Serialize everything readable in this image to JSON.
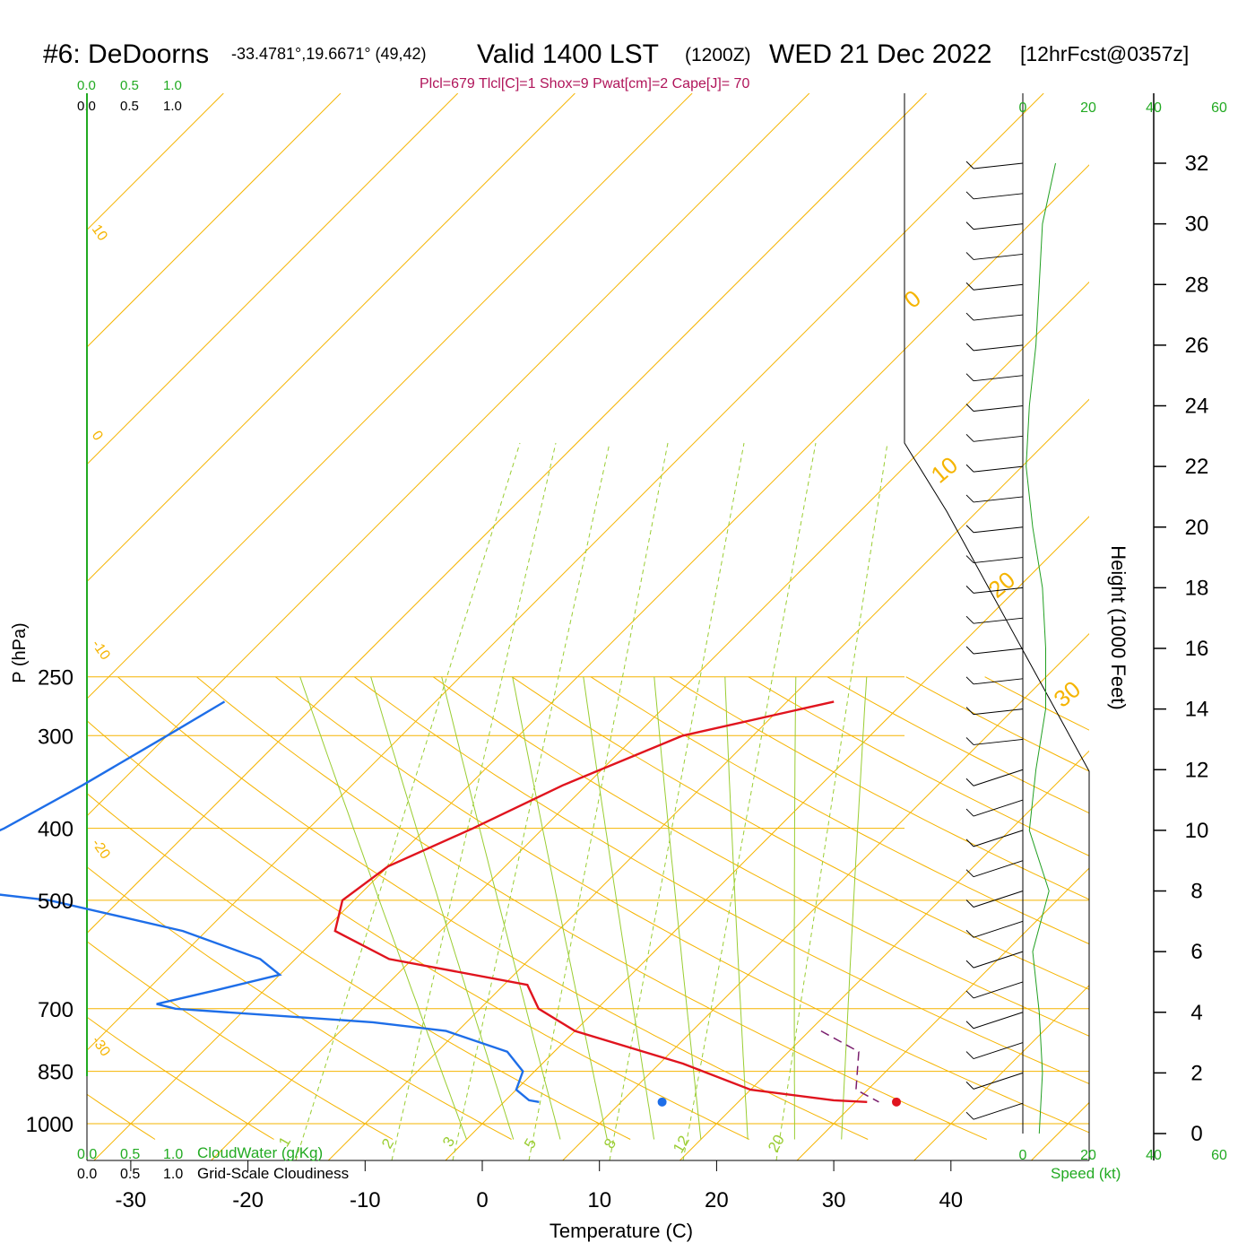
{
  "header": {
    "station": "#6: DeDoorns",
    "coords": "-33.4781°,19.6671° (49,42)",
    "valid": "Valid 1400 LST",
    "utc": "(1200Z)",
    "date": "WED 21 Dec 2022",
    "forecast": "[12hrFcst@0357z]",
    "indices": "Plcl=679 Tlcl[C]=1 Shox=9 Pwat[cm]=2 Cape[J]= 70"
  },
  "colors": {
    "isobar": "#f5b400",
    "isotherm": "#f5b400",
    "dry_adiabat": "#f5b400",
    "moist_adiabat": "#9acd32",
    "mixing_ratio": "#9acd32",
    "temperature": "#e0141e",
    "dewpoint": "#1e6ee8",
    "parcel": "#7a1f6e",
    "speed": "#22a022",
    "indices": "#b0145a",
    "green_label": "#22aa22"
  },
  "chart_data": {
    "type": "line",
    "xlabel": "Temperature (C)",
    "ylabel": "P (hPa)",
    "y2label": "Height (1000 Feet)",
    "y_scale": "log",
    "xlim": [
      -34,
      36
    ],
    "ylim": [
      1000,
      250
    ],
    "pressure_ticks": [
      250,
      300,
      400,
      500,
      700,
      850,
      1000
    ],
    "temp_ticks": [
      -30,
      -20,
      -10,
      0,
      10,
      20,
      30,
      40
    ],
    "height_ticks": [
      "32",
      "30",
      "28",
      "26",
      "24",
      "22",
      "20",
      "18",
      "16",
      "14",
      "12",
      "10",
      "8",
      "6",
      "4",
      "2",
      "0"
    ],
    "dry_adiabat_labels": [
      "10",
      "0",
      "-10",
      "-20",
      "-30"
    ],
    "isotherm_labels": [
      "0",
      "10",
      "20",
      "30"
    ],
    "mixing_ratio_labels": [
      "1",
      "2",
      "3",
      "5",
      "8",
      "12",
      "20"
    ],
    "cloud_scale_ticks": [
      "0.0",
      "0.5",
      "1.0"
    ],
    "cloudwater_label": "CloudWater (g/Kg)",
    "cloudiness_label": "Grid-Scale Cloudiness",
    "speed_label": "Speed (kt)",
    "speed_ticks": [
      "0",
      "20",
      "40",
      "60"
    ],
    "series": [
      {
        "name": "Temperature",
        "points": [
          [
            -6,
            270
          ],
          [
            -16,
            300
          ],
          [
            -22,
            350
          ],
          [
            -26,
            400
          ],
          [
            -30,
            450
          ],
          [
            -31,
            500
          ],
          [
            -29,
            550
          ],
          [
            -22,
            600
          ],
          [
            -8,
            650
          ],
          [
            -5,
            700
          ],
          [
            0,
            750
          ],
          [
            12,
            830
          ],
          [
            20,
            900
          ],
          [
            28,
            930
          ],
          [
            31,
            935
          ]
        ]
      },
      {
        "name": "Dewpoint",
        "points": [
          [
            -58,
            270
          ],
          [
            -60,
            300
          ],
          [
            -63,
            350
          ],
          [
            -66,
            400
          ],
          [
            -70,
            450
          ],
          [
            -67,
            480
          ],
          [
            -56,
            500
          ],
          [
            -42,
            550
          ],
          [
            -33,
            600
          ],
          [
            -30,
            630
          ],
          [
            -34,
            660
          ],
          [
            -38,
            690
          ],
          [
            -36,
            700
          ],
          [
            -18,
            730
          ],
          [
            -11,
            750
          ],
          [
            -4,
            800
          ],
          [
            -1,
            850
          ],
          [
            0,
            900
          ],
          [
            2,
            930
          ],
          [
            3,
            935
          ]
        ]
      },
      {
        "name": "Parcel",
        "points": [
          [
            21,
            750
          ],
          [
            26,
            800
          ],
          [
            29,
            900
          ],
          [
            32,
            935
          ]
        ]
      }
    ],
    "surface_points": {
      "temperature": 33.5,
      "dewpoint": 13.5,
      "pressure": 935
    },
    "wind_speed_kt": [
      [
        0,
        5
      ],
      [
        2,
        6
      ],
      [
        4,
        5
      ],
      [
        6,
        3
      ],
      [
        8,
        8
      ],
      [
        10,
        2
      ],
      [
        12,
        4
      ],
      [
        14,
        7
      ],
      [
        16,
        7
      ],
      [
        18,
        6
      ],
      [
        20,
        3
      ],
      [
        22,
        1
      ],
      [
        24,
        2
      ],
      [
        26,
        4
      ],
      [
        28,
        5
      ],
      [
        30,
        6
      ],
      [
        32,
        10
      ]
    ]
  }
}
